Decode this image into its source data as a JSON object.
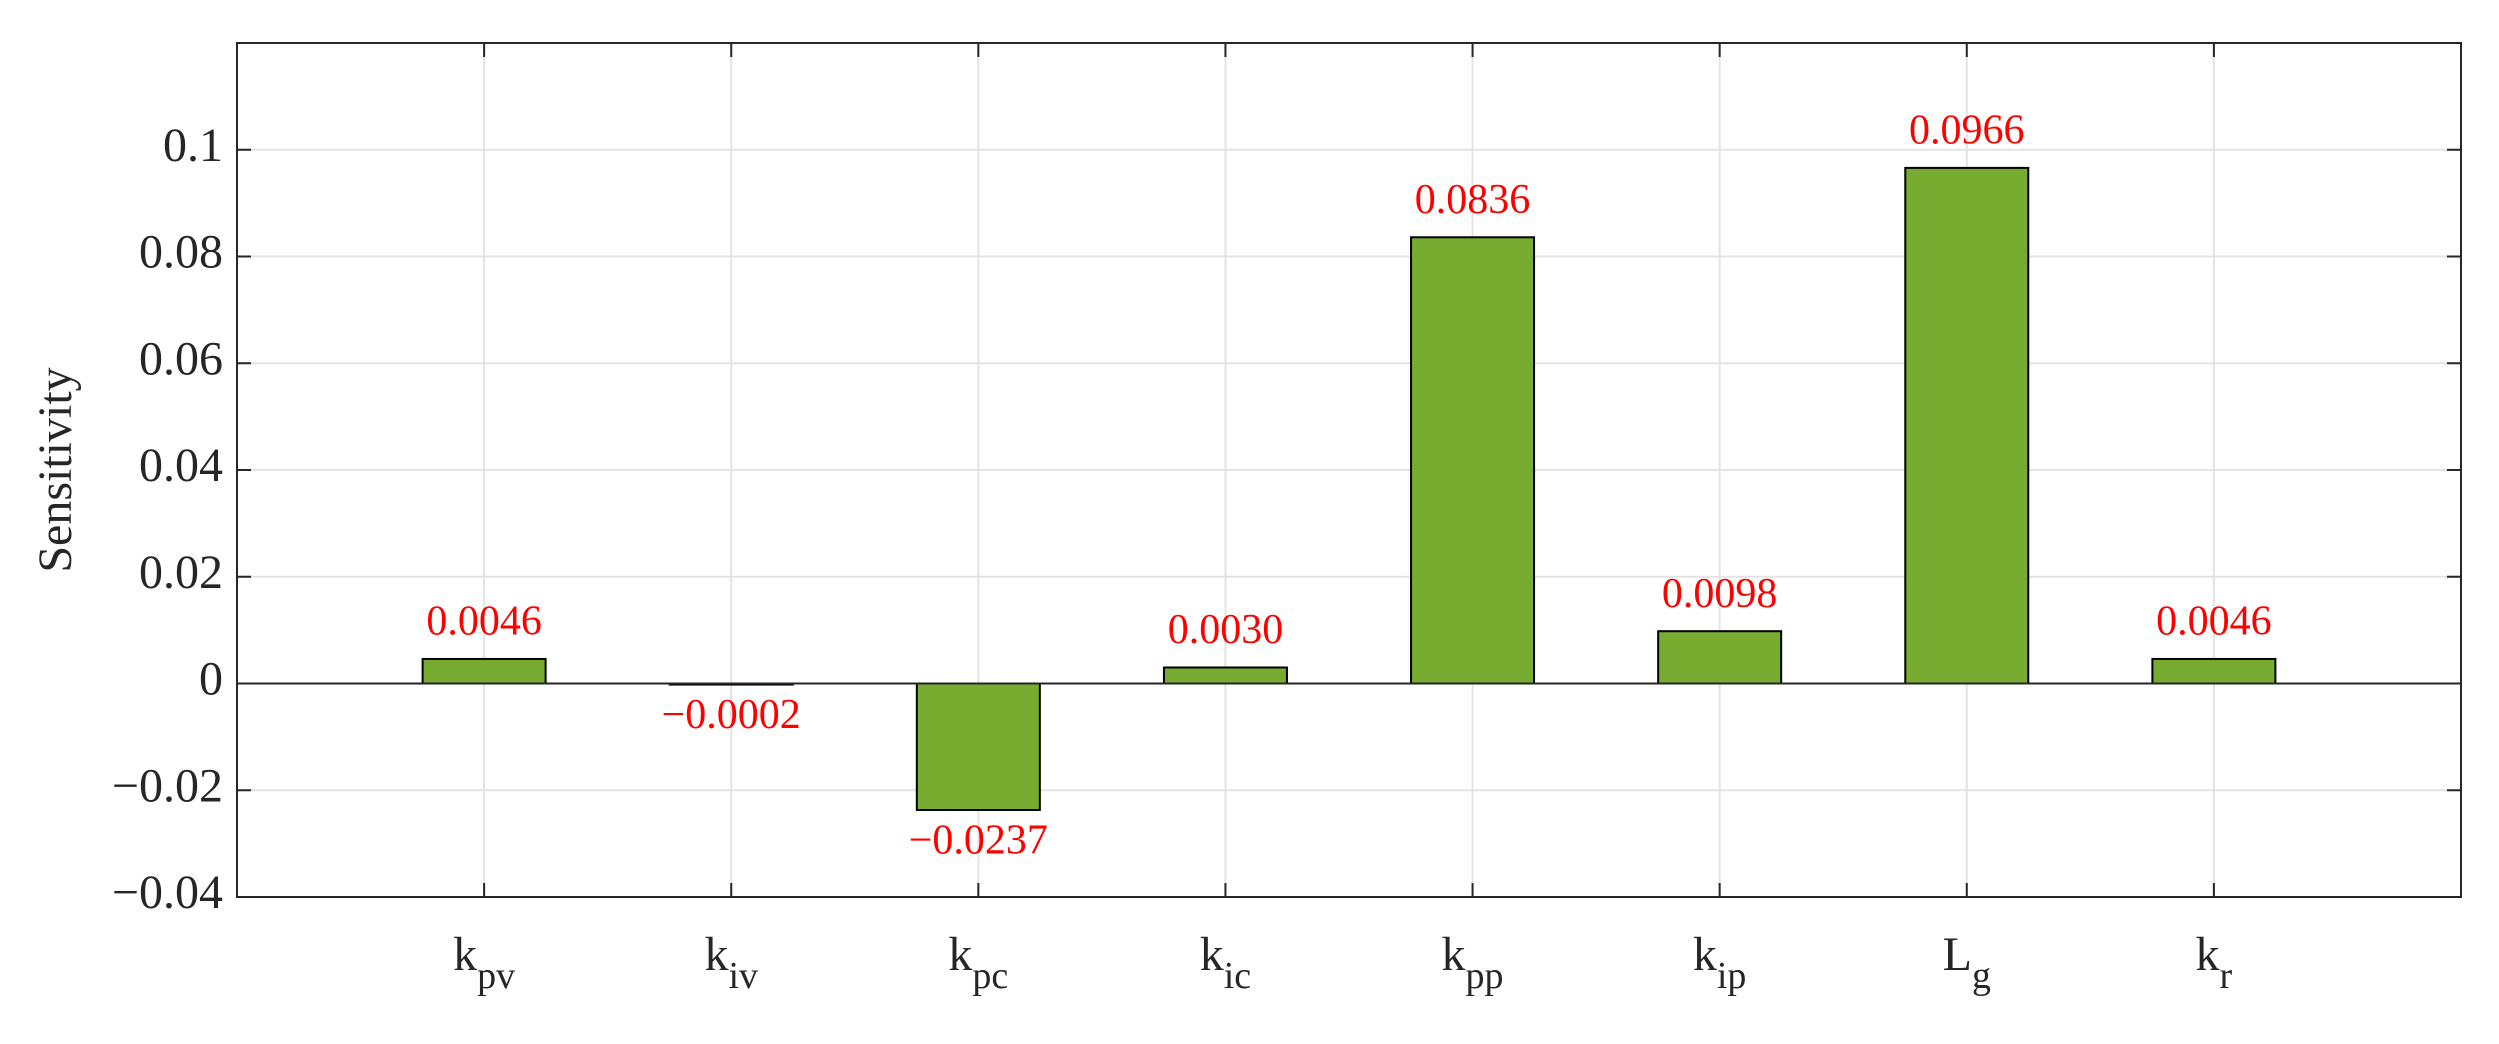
{
  "chart_data": {
    "type": "bar",
    "y_label": "Sensitivity",
    "categories": [
      {
        "main": "k",
        "sub": "pv"
      },
      {
        "main": "k",
        "sub": "iv"
      },
      {
        "main": "k",
        "sub": "pc"
      },
      {
        "main": "k",
        "sub": "ic"
      },
      {
        "main": "k",
        "sub": "pp"
      },
      {
        "main": "k",
        "sub": "ip"
      },
      {
        "main": "L",
        "sub": "g"
      },
      {
        "main": "k",
        "sub": "r"
      }
    ],
    "values": [
      0.0046,
      -0.0002,
      -0.0237,
      0.003,
      0.0836,
      0.0098,
      0.0966,
      0.0046
    ],
    "value_labels": [
      "0.0046",
      "−0.0002",
      "−0.0237",
      "0.0030",
      "0.0836",
      "0.0098",
      "0.0966",
      "0.0046"
    ],
    "color": "#77ac30",
    "label_color": "#ff0000",
    "ylim": [
      -0.04,
      0.12
    ],
    "yticks": [
      {
        "value": -0.04,
        "label": "−0.04"
      },
      {
        "value": -0.02,
        "label": "−0.02"
      },
      0,
      0.02,
      0.04,
      0.06,
      0.08,
      0.1
    ],
    "grid": true
  }
}
